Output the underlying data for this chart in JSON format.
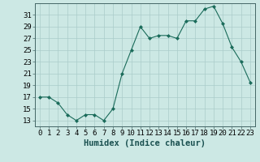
{
  "x": [
    0,
    1,
    2,
    3,
    4,
    5,
    6,
    7,
    8,
    9,
    10,
    11,
    12,
    13,
    14,
    15,
    16,
    17,
    18,
    19,
    20,
    21,
    22,
    23
  ],
  "y": [
    17,
    17,
    16,
    14,
    13,
    14,
    14,
    13,
    15,
    21,
    25,
    29,
    27,
    27.5,
    27.5,
    27,
    30,
    30,
    32,
    32.5,
    29.5,
    25.5,
    23,
    19.5
  ],
  "line_color": "#1a6b5a",
  "marker": "D",
  "marker_size": 2.0,
  "bg_color": "#cce8e4",
  "grid_color": "#aaccca",
  "xlabel": "Humidex (Indice chaleur)",
  "xlabel_fontsize": 7.5,
  "ylabel_ticks": [
    13,
    15,
    17,
    19,
    21,
    23,
    25,
    27,
    29,
    31
  ],
  "xtick_labels": [
    "0",
    "1",
    "2",
    "3",
    "4",
    "5",
    "6",
    "7",
    "8",
    "9",
    "10",
    "11",
    "12",
    "13",
    "14",
    "15",
    "16",
    "17",
    "18",
    "19",
    "20",
    "21",
    "22",
    "23"
  ],
  "xlim": [
    -0.5,
    23.5
  ],
  "ylim": [
    12,
    33
  ],
  "tick_fontsize": 6.5
}
